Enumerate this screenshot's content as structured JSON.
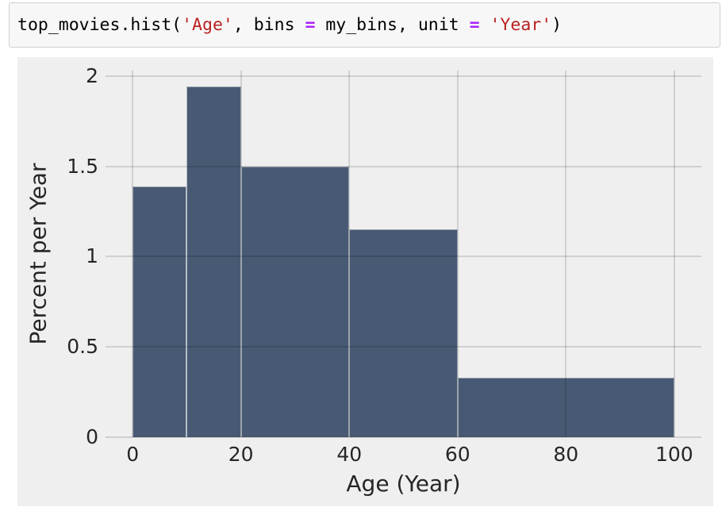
{
  "code_cell": {
    "language": "python",
    "tokens": [
      {
        "text": "top_movies.hist(",
        "type": "plain"
      },
      {
        "text": "'Age'",
        "type": "string"
      },
      {
        "text": ", bins ",
        "type": "plain"
      },
      {
        "text": "=",
        "type": "operator"
      },
      {
        "text": " my_bins, unit ",
        "type": "plain"
      },
      {
        "text": "=",
        "type": "operator"
      },
      {
        "text": " ",
        "type": "plain"
      },
      {
        "text": "'Year'",
        "type": "string"
      },
      {
        "text": ")",
        "type": "plain"
      }
    ]
  },
  "chart_data": {
    "type": "bar",
    "subtype": "histogram",
    "title": "",
    "xlabel": "Age (Year)",
    "ylabel": "Percent per Year",
    "bin_edges": [
      0,
      10,
      20,
      40,
      60,
      100
    ],
    "values": [
      1.39,
      1.94,
      1.5,
      1.15,
      0.33
    ],
    "x_ticks": [
      0,
      20,
      40,
      60,
      80,
      100
    ],
    "y_ticks": [
      0,
      0.5,
      1,
      1.5,
      2
    ],
    "xlim": [
      -5,
      105
    ],
    "ylim": [
      0,
      2.03
    ],
    "grid": true,
    "legend": false,
    "colors": {
      "bar": "#485a73",
      "figure_background": "#efefef",
      "gridline": "rgba(0,0,0,0.13)",
      "tick_text": "#262626"
    }
  }
}
